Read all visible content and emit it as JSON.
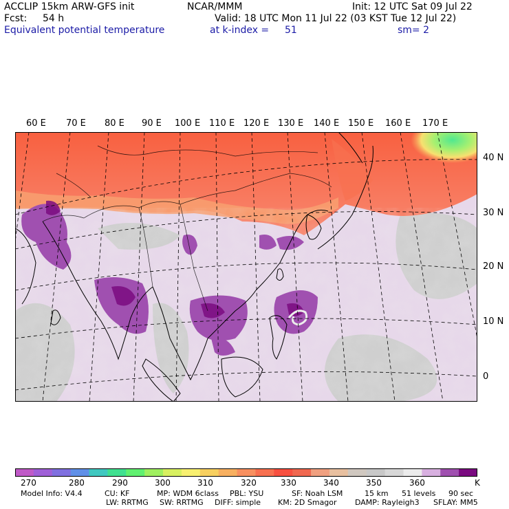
{
  "header": {
    "model": "ACCLIP 15km ARW-GFS init",
    "org": "NCAR/MMM",
    "init": "Init: 12 UTC Sat 09 Jul 22",
    "fcst_label": "Fcst:",
    "fcst_value": "54 h",
    "valid": "Valid: 18 UTC Mon 11 Jul 22 (03 KST Tue 12 Jul 22)",
    "field": "Equivalent potential temperature",
    "level": "at k-index =",
    "level_value": "51",
    "smooth": "sm= 2"
  },
  "map": {
    "lon_labels": [
      "60 E",
      "70 E",
      "80 E",
      "90 E",
      "100 E",
      "110 E",
      "120 E",
      "130 E",
      "140 E",
      "150 E",
      "160 E",
      "170 E"
    ],
    "lat_labels": [
      "40 N",
      "30 N",
      "20 N",
      "10 N",
      "0"
    ]
  },
  "colorbar": {
    "ticks": [
      "270",
      "280",
      "290",
      "300",
      "310",
      "320",
      "330",
      "340",
      "350",
      "360"
    ],
    "unit": "K",
    "colors": [
      "#c05ac8",
      "#a060d8",
      "#8070e0",
      "#6090e8",
      "#40c8c0",
      "#40e090",
      "#60f070",
      "#a0f060",
      "#d8f060",
      "#f8f070",
      "#f8d060",
      "#f8b060",
      "#f89060",
      "#f87050",
      "#f85040",
      "#f06850",
      "#f0a080",
      "#e8c0a0",
      "#d0c8c0",
      "#c8c8c8",
      "#d8d8d8",
      "#ececec",
      "#d8b0e0",
      "#a050b0",
      "#7a0a80"
    ]
  },
  "footer": {
    "line1": [
      "Model Info: V4.4",
      "CU: KF",
      "MP: WDM 6class",
      "PBL: YSU",
      "SF: Noah LSM",
      "15 km",
      "51 levels",
      "90 sec"
    ],
    "line2": [
      "LW: RRTMG",
      "SW: RRTMG",
      "DIFF: simple",
      "KM: 2D Smagor",
      "DAMP: Rayleigh3",
      "SFLAY: MM5"
    ]
  }
}
